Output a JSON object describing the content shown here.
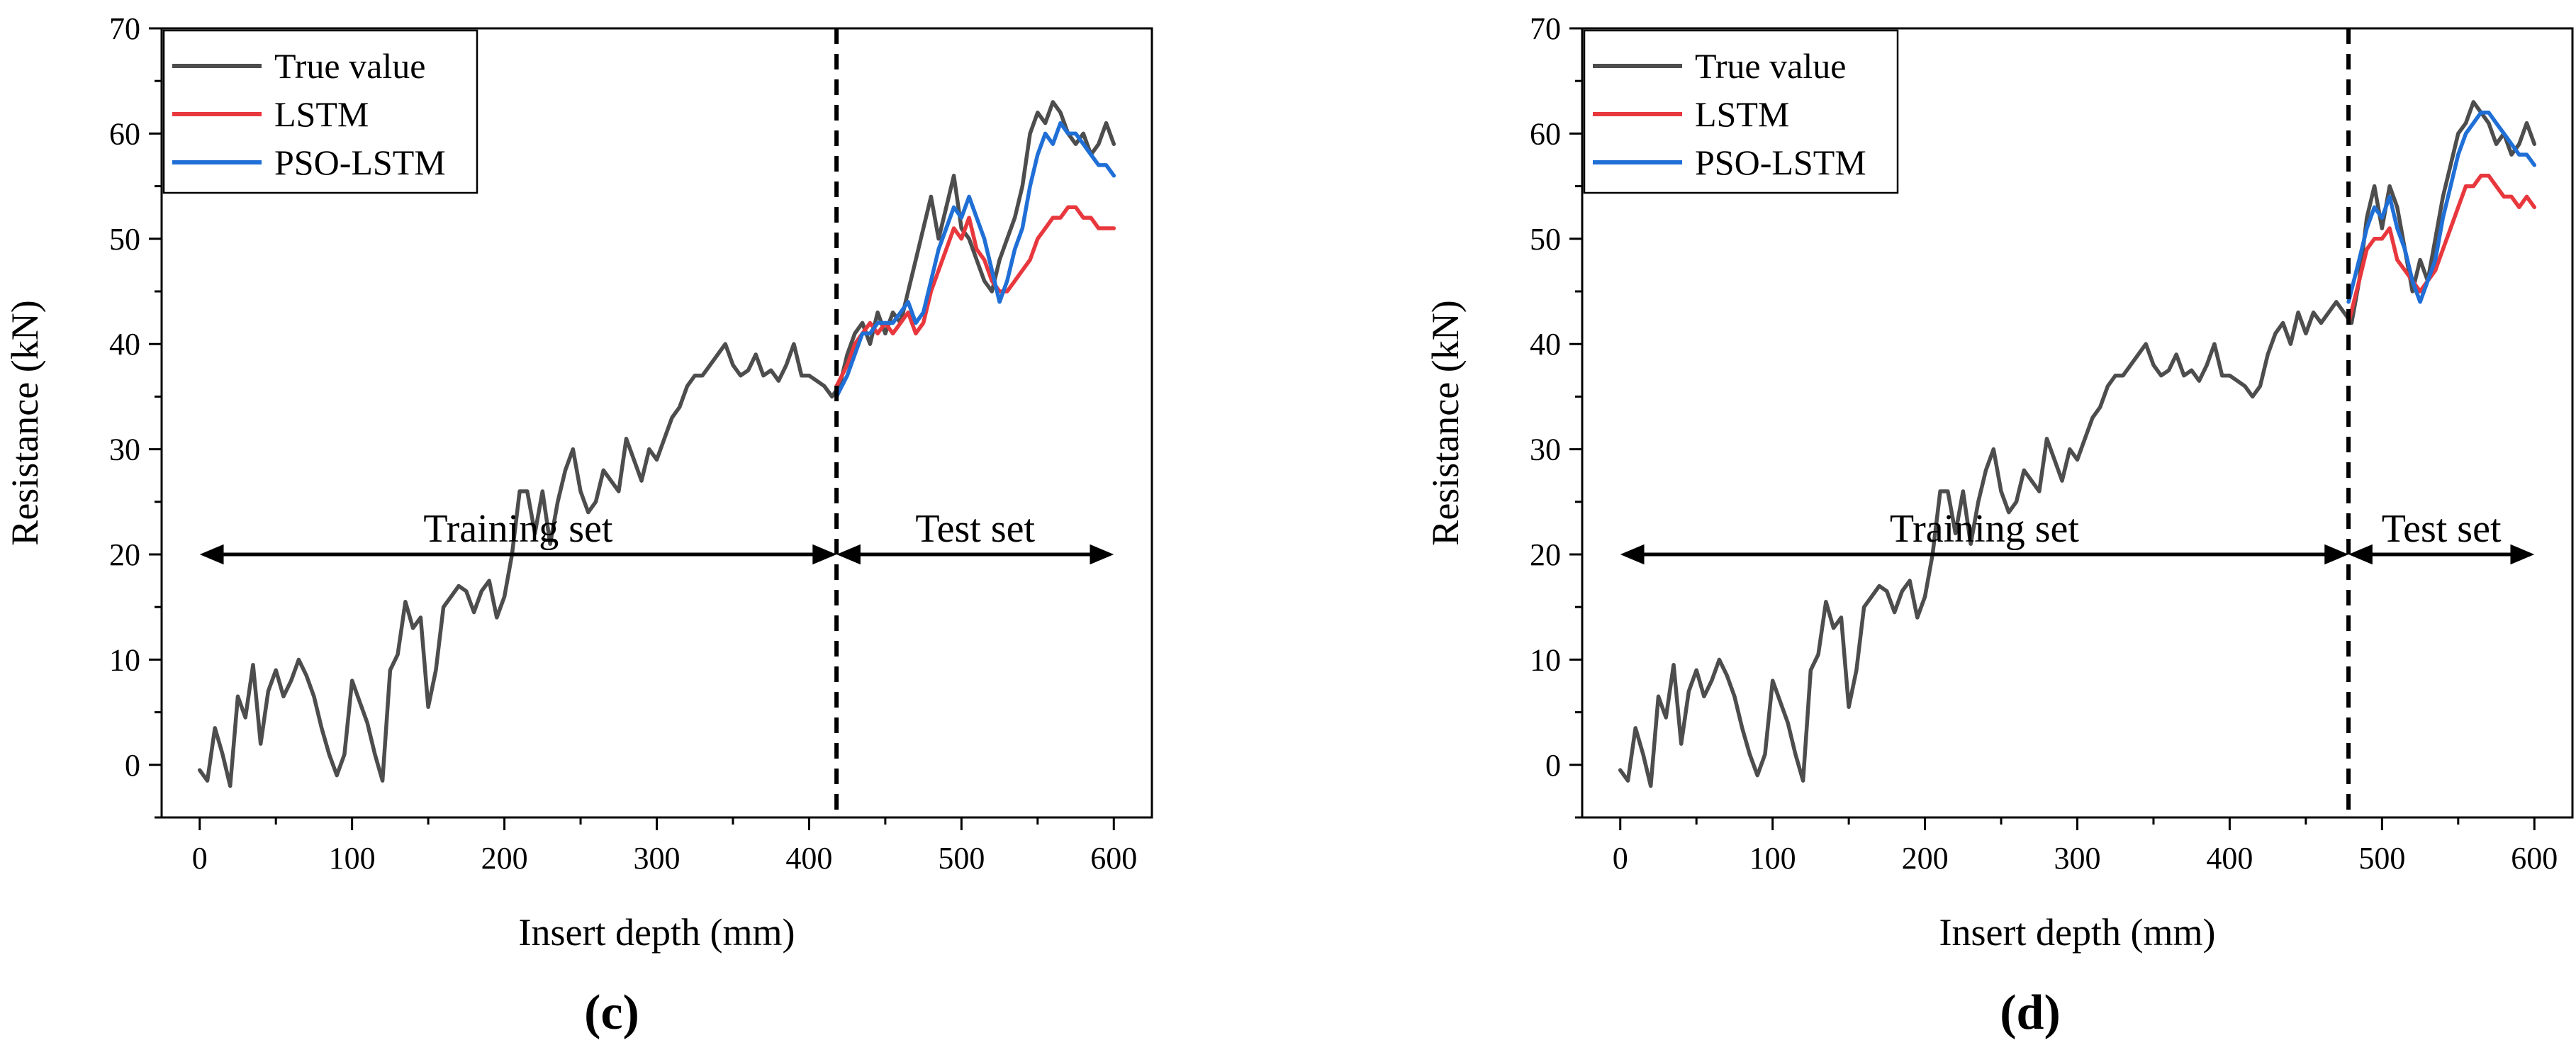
{
  "figure": {
    "title": ""
  },
  "chart_data": [
    {
      "panel_label": "(c)",
      "type": "line",
      "title": "",
      "xlabel": "Insert depth (mm)",
      "ylabel": "Resistance (kN)",
      "xlim": [
        -25,
        625
      ],
      "ylim": [
        -5,
        70
      ],
      "xticks": [
        0,
        100,
        200,
        300,
        400,
        500,
        600
      ],
      "yticks": [
        0,
        10,
        20,
        30,
        40,
        50,
        60,
        70
      ],
      "grid": false,
      "legend_position": "top-left",
      "split_x": 418,
      "annotations": [
        {
          "text": "Training set",
          "from_x": 0,
          "to_x": 418,
          "y": 20
        },
        {
          "text": "Test set",
          "from_x": 418,
          "to_x": 600,
          "y": 20
        }
      ],
      "series": [
        {
          "name": "True value",
          "color": "#4d4d4d",
          "x": [
            0,
            5,
            10,
            15,
            20,
            25,
            30,
            35,
            40,
            45,
            50,
            55,
            60,
            65,
            70,
            75,
            80,
            85,
            90,
            95,
            100,
            105,
            110,
            115,
            120,
            125,
            130,
            135,
            140,
            145,
            150,
            155,
            160,
            165,
            170,
            175,
            180,
            185,
            190,
            195,
            200,
            205,
            210,
            215,
            220,
            225,
            230,
            235,
            240,
            245,
            250,
            255,
            260,
            265,
            270,
            275,
            280,
            285,
            290,
            295,
            300,
            305,
            310,
            315,
            320,
            325,
            330,
            335,
            340,
            345,
            350,
            355,
            360,
            365,
            370,
            375,
            380,
            385,
            390,
            395,
            400,
            405,
            410,
            415,
            420,
            425,
            430,
            435,
            440,
            445,
            450,
            455,
            460,
            465,
            470,
            475,
            480,
            485,
            490,
            495,
            500,
            505,
            510,
            515,
            520,
            525,
            530,
            535,
            540,
            545,
            550,
            555,
            560,
            565,
            570,
            575,
            580,
            585,
            590,
            595,
            600
          ],
          "y": [
            -0.5,
            -1.5,
            3.5,
            1,
            -2,
            6.5,
            4.5,
            9.5,
            2,
            7,
            9,
            6.5,
            8,
            10,
            8.5,
            6.5,
            3.5,
            1,
            -1,
            1,
            8,
            6,
            4,
            1,
            -1.5,
            9,
            10.5,
            15.5,
            13,
            14,
            5.5,
            9,
            15,
            16,
            17,
            16.5,
            14.5,
            16.5,
            17.5,
            14,
            16,
            20,
            26,
            26,
            22,
            26,
            21,
            25,
            28,
            30,
            26,
            24,
            25,
            28,
            27,
            26,
            31,
            29,
            27,
            30,
            29,
            31,
            33,
            34,
            36,
            37,
            37,
            38,
            39,
            40,
            38,
            37,
            37.5,
            39,
            37,
            37.5,
            36.5,
            38,
            40,
            37,
            37,
            36.5,
            36,
            35,
            36,
            39,
            41,
            42,
            40,
            43,
            41,
            43,
            42,
            45,
            48,
            51,
            54,
            50,
            53,
            56,
            51,
            50,
            48,
            46,
            45,
            48,
            50,
            52,
            55,
            60,
            62,
            61,
            63,
            62,
            60,
            59,
            60,
            58,
            59,
            61,
            59
          ]
        },
        {
          "name": "LSTM",
          "color": "#e8383d",
          "x": [
            418,
            425,
            430,
            435,
            440,
            445,
            450,
            455,
            460,
            465,
            470,
            475,
            480,
            485,
            490,
            495,
            500,
            505,
            510,
            515,
            520,
            525,
            530,
            535,
            540,
            545,
            550,
            555,
            560,
            565,
            570,
            575,
            580,
            585,
            590,
            595,
            600
          ],
          "y": [
            36,
            38,
            40,
            41,
            42,
            41,
            42,
            41,
            42,
            43,
            41,
            42,
            45,
            47,
            49,
            51,
            50,
            52,
            49,
            48,
            46,
            45,
            45,
            46,
            47,
            48,
            50,
            51,
            52,
            52,
            53,
            53,
            52,
            52,
            51,
            51,
            51
          ]
        },
        {
          "name": "PSO-LSTM",
          "color": "#1f6fd6",
          "x": [
            418,
            425,
            430,
            435,
            440,
            445,
            450,
            455,
            460,
            465,
            470,
            475,
            480,
            485,
            490,
            495,
            500,
            505,
            510,
            515,
            520,
            525,
            530,
            535,
            540,
            545,
            550,
            555,
            560,
            565,
            570,
            575,
            580,
            585,
            590,
            595,
            600
          ],
          "y": [
            35,
            37,
            39,
            41,
            41,
            42,
            42,
            42,
            43,
            44,
            42,
            43,
            46,
            49,
            51,
            53,
            52,
            54,
            52,
            50,
            47,
            44,
            46,
            49,
            51,
            55,
            58,
            60,
            59,
            61,
            60,
            60,
            59,
            58,
            57,
            57,
            56
          ]
        }
      ]
    },
    {
      "panel_label": "(d)",
      "type": "line",
      "title": "",
      "xlabel": "Insert depth (mm)",
      "ylabel": "Resistance (kN)",
      "xlim": [
        -25,
        625
      ],
      "ylim": [
        -5,
        70
      ],
      "xticks": [
        0,
        100,
        200,
        300,
        400,
        500,
        600
      ],
      "yticks": [
        0,
        10,
        20,
        30,
        40,
        50,
        60,
        70
      ],
      "grid": false,
      "legend_position": "top-left",
      "split_x": 478,
      "annotations": [
        {
          "text": "Training set",
          "from_x": 0,
          "to_x": 478,
          "y": 20
        },
        {
          "text": "Test set",
          "from_x": 478,
          "to_x": 600,
          "y": 20
        }
      ],
      "series": [
        {
          "name": "True value",
          "color": "#4d4d4d",
          "x": [
            0,
            5,
            10,
            15,
            20,
            25,
            30,
            35,
            40,
            45,
            50,
            55,
            60,
            65,
            70,
            75,
            80,
            85,
            90,
            95,
            100,
            105,
            110,
            115,
            120,
            125,
            130,
            135,
            140,
            145,
            150,
            155,
            160,
            165,
            170,
            175,
            180,
            185,
            190,
            195,
            200,
            205,
            210,
            215,
            220,
            225,
            230,
            235,
            240,
            245,
            250,
            255,
            260,
            265,
            270,
            275,
            280,
            285,
            290,
            295,
            300,
            305,
            310,
            315,
            320,
            325,
            330,
            335,
            340,
            345,
            350,
            355,
            360,
            365,
            370,
            375,
            380,
            385,
            390,
            395,
            400,
            405,
            410,
            415,
            420,
            425,
            430,
            435,
            440,
            445,
            450,
            455,
            460,
            465,
            470,
            475,
            480,
            485,
            490,
            495,
            500,
            505,
            510,
            515,
            520,
            525,
            530,
            535,
            540,
            545,
            550,
            555,
            560,
            565,
            570,
            575,
            580,
            585,
            590,
            595,
            600
          ],
          "y": [
            -0.5,
            -1.5,
            3.5,
            1,
            -2,
            6.5,
            4.5,
            9.5,
            2,
            7,
            9,
            6.5,
            8,
            10,
            8.5,
            6.5,
            3.5,
            1,
            -1,
            1,
            8,
            6,
            4,
            1,
            -1.5,
            9,
            10.5,
            15.5,
            13,
            14,
            5.5,
            9,
            15,
            16,
            17,
            16.5,
            14.5,
            16.5,
            17.5,
            14,
            16,
            20,
            26,
            26,
            22,
            26,
            21,
            25,
            28,
            30,
            26,
            24,
            25,
            28,
            27,
            26,
            31,
            29,
            27,
            30,
            29,
            31,
            33,
            34,
            36,
            37,
            37,
            38,
            39,
            40,
            38,
            37,
            37.5,
            39,
            37,
            37.5,
            36.5,
            38,
            40,
            37,
            37,
            36.5,
            36,
            35,
            36,
            39,
            41,
            42,
            40,
            43,
            41,
            43,
            42,
            43,
            44,
            43,
            42,
            46,
            52,
            55,
            51,
            55,
            53,
            49,
            45,
            48,
            46,
            50,
            54,
            57,
            60,
            61,
            63,
            62,
            61,
            59,
            60,
            58,
            59,
            61,
            59
          ]
        },
        {
          "name": "LSTM",
          "color": "#e8383d",
          "x": [
            478,
            485,
            490,
            495,
            500,
            505,
            510,
            515,
            520,
            525,
            530,
            535,
            540,
            545,
            550,
            555,
            560,
            565,
            570,
            575,
            580,
            585,
            590,
            595,
            600
          ],
          "y": [
            42,
            46,
            49,
            50,
            50,
            51,
            48,
            47,
            46,
            45,
            46,
            47,
            49,
            51,
            53,
            55,
            55,
            56,
            56,
            55,
            54,
            54,
            53,
            54,
            53
          ]
        },
        {
          "name": "PSO-LSTM",
          "color": "#1f6fd6",
          "x": [
            478,
            485,
            490,
            495,
            500,
            505,
            510,
            515,
            520,
            525,
            530,
            535,
            540,
            545,
            550,
            555,
            560,
            565,
            570,
            575,
            580,
            585,
            590,
            595,
            600
          ],
          "y": [
            44,
            48,
            51,
            53,
            52,
            54,
            51,
            49,
            46,
            44,
            46,
            48,
            52,
            55,
            58,
            60,
            61,
            62,
            62,
            61,
            60,
            59,
            58,
            58,
            57
          ]
        }
      ]
    }
  ]
}
